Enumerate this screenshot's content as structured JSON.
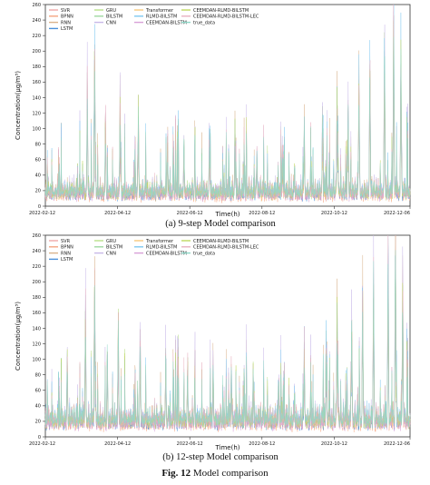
{
  "figure": {
    "caption_label": "Fig. 12",
    "caption_text": " Model comparison"
  },
  "series_colors": {
    "SVR": "#f0a8a8",
    "BPNN": "#f4a582",
    "RNN": "#d9b38c",
    "LSTM": "#4a90d9",
    "GRU": "#b8e08a",
    "BILSTM": "#9fd8a0",
    "CNN": "#c8b8e8",
    "Transformer": "#f7c97e",
    "RLMD-BILSTM": "#7fc8f0",
    "CEEMDAN-BILSTM": "#d8a0d8",
    "CEEMDAN-RLMD-BILSTM": "#c0d860",
    "CEEMDAN-RLMD-BILSTM-LEC": "#e8b0c0",
    "true_data": "#8fd8c8"
  },
  "chart_data": [
    {
      "type": "line",
      "caption": "(a) 9-step Model comparison",
      "xlabel": "Time(h)",
      "ylabel": "Concentration(μg/m³)",
      "ylim": [
        0,
        260
      ],
      "yticks": [
        0,
        20,
        40,
        60,
        80,
        100,
        120,
        140,
        160,
        180,
        200,
        220,
        240,
        260
      ],
      "xticks": [
        "2022-02-12",
        "2022-04-12",
        "2022-06-12",
        "2022-08-12",
        "2022-10-12",
        "2022-12-06"
      ],
      "legend_position": "top-left",
      "legend": [
        "SVR",
        "BPNN",
        "RNN",
        "LSTM",
        "GRU",
        "BILSTM",
        "CNN",
        "Transformer",
        "RLMD-BILSTM",
        "CEEMDAN-BILSTM",
        "CEEMDAN-RLMD-BILSTM",
        "CEEMDAN-RLMD-BILSTM-LEC",
        "true_data"
      ],
      "n_points": 1080,
      "base_level": 15,
      "noise_level": 10,
      "peaks": [
        {
          "t": 0.115,
          "value": 145
        },
        {
          "t": 0.135,
          "value": 205
        },
        {
          "t": 0.165,
          "value": 105
        },
        {
          "t": 0.205,
          "value": 130
        },
        {
          "t": 0.255,
          "value": 118
        },
        {
          "t": 0.335,
          "value": 85
        },
        {
          "t": 0.38,
          "value": 80
        },
        {
          "t": 0.45,
          "value": 90
        },
        {
          "t": 0.52,
          "value": 95
        },
        {
          "t": 0.58,
          "value": 75
        },
        {
          "t": 0.65,
          "value": 70
        },
        {
          "t": 0.71,
          "value": 100
        },
        {
          "t": 0.76,
          "value": 110
        },
        {
          "t": 0.8,
          "value": 140
        },
        {
          "t": 0.83,
          "value": 130
        },
        {
          "t": 0.86,
          "value": 160
        },
        {
          "t": 0.89,
          "value": 185
        },
        {
          "t": 0.93,
          "value": 210
        },
        {
          "t": 0.955,
          "value": 235
        },
        {
          "t": 0.975,
          "value": 190
        }
      ]
    },
    {
      "type": "line",
      "caption": "(b) 12-step Model comparison",
      "xlabel": "Time(h)",
      "ylabel": "Concentration(μg/m³)",
      "ylim": [
        0,
        260
      ],
      "yticks": [
        0,
        20,
        40,
        60,
        80,
        100,
        120,
        140,
        160,
        180,
        200,
        220,
        240,
        260
      ],
      "xticks": [
        "2022-02-12",
        "2022-04-12",
        "2022-06-12",
        "2022-08-12",
        "2022-10-12",
        "2022-12-06"
      ],
      "legend_position": "top-left",
      "legend": [
        "SVR",
        "BPNN",
        "RNN",
        "LSTM",
        "GRU",
        "BILSTM",
        "CNN",
        "Transformer",
        "RLMD-BILSTM",
        "CEEMDAN-BILSTM",
        "CEEMDAN-RLMD-BILSTM",
        "CEEMDAN-RLMD-BILSTM-LEC",
        "true_data"
      ],
      "n_points": 1080,
      "base_level": 18,
      "noise_level": 12,
      "peaks": [
        {
          "t": 0.06,
          "value": 100
        },
        {
          "t": 0.11,
          "value": 165
        },
        {
          "t": 0.135,
          "value": 205
        },
        {
          "t": 0.17,
          "value": 115
        },
        {
          "t": 0.2,
          "value": 140
        },
        {
          "t": 0.26,
          "value": 125
        },
        {
          "t": 0.33,
          "value": 100
        },
        {
          "t": 0.39,
          "value": 90
        },
        {
          "t": 0.46,
          "value": 95
        },
        {
          "t": 0.51,
          "value": 85
        },
        {
          "t": 0.57,
          "value": 80
        },
        {
          "t": 0.64,
          "value": 75
        },
        {
          "t": 0.71,
          "value": 110
        },
        {
          "t": 0.77,
          "value": 120
        },
        {
          "t": 0.8,
          "value": 160
        },
        {
          "t": 0.84,
          "value": 150
        },
        {
          "t": 0.87,
          "value": 185
        },
        {
          "t": 0.9,
          "value": 195
        },
        {
          "t": 0.94,
          "value": 225
        },
        {
          "t": 0.96,
          "value": 240
        },
        {
          "t": 0.98,
          "value": 200
        }
      ]
    }
  ]
}
